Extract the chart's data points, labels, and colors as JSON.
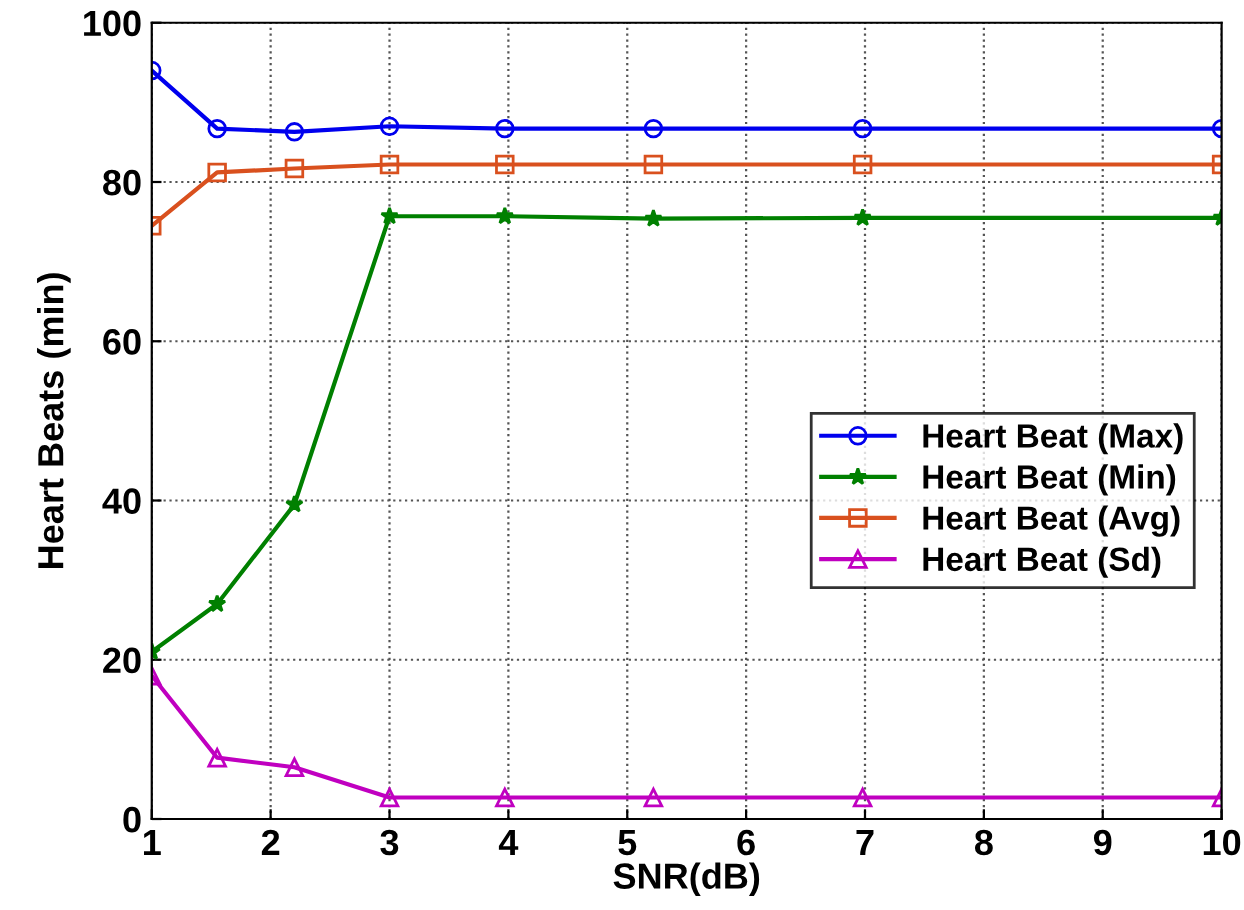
{
  "chart_data": {
    "type": "line",
    "xlabel": "SNR(dB)",
    "ylabel": "Heart Beats (min)",
    "x": [
      1,
      1.55,
      2.2,
      3,
      3.97,
      5.22,
      6.98,
      10
    ],
    "series": [
      {
        "name": "Heart Beat (Max)",
        "color": "#0000ee",
        "marker": "circle",
        "values": [
          94,
          86.7,
          86.3,
          87,
          86.7,
          86.7,
          86.7,
          86.7
        ]
      },
      {
        "name": "Heart Beat (Min)",
        "color": "#008000",
        "marker": "star",
        "values": [
          21,
          27,
          39.5,
          75.7,
          75.7,
          75.4,
          75.5,
          75.5
        ]
      },
      {
        "name": "Heart Beat (Avg)",
        "color": "#d9501e",
        "marker": "square",
        "values": [
          74.5,
          81.2,
          81.7,
          82.2,
          82.2,
          82.2,
          82.2,
          82.2
        ]
      },
      {
        "name": "Heart Beat (Sd)",
        "color": "#c000c0",
        "marker": "triangle",
        "values": [
          18,
          7.7,
          6.5,
          2.7,
          2.7,
          2.7,
          2.7,
          2.7
        ]
      }
    ],
    "xlim": [
      1,
      10
    ],
    "xticks": [
      1,
      2,
      3,
      4,
      5,
      6,
      7,
      8,
      9,
      10
    ],
    "ylim": [
      0,
      100
    ],
    "yticks": [
      0,
      20,
      40,
      60,
      80,
      100
    ],
    "grid": true,
    "legend": "center right",
    "line_style": "solid"
  }
}
